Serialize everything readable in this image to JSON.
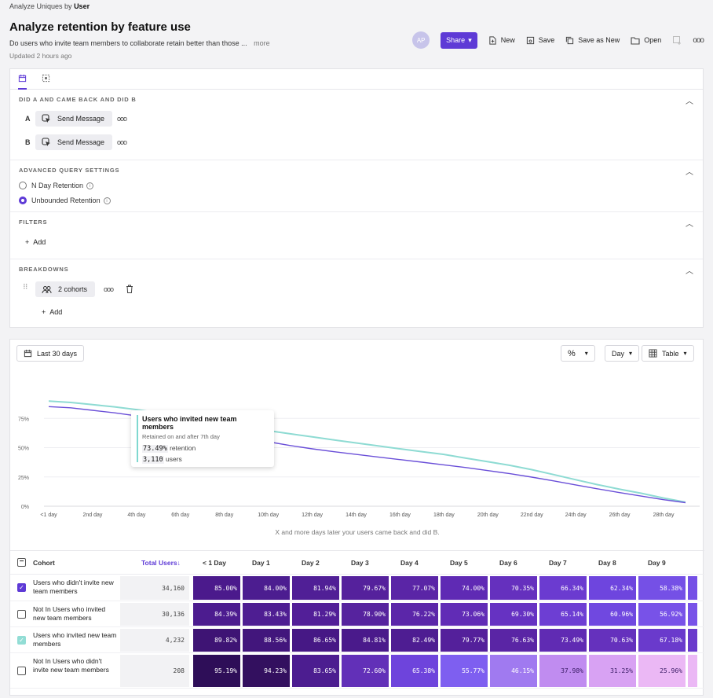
{
  "header": {
    "analyze_prefix": "Analyze Uniques by",
    "analyze_by": "User",
    "title": "Analyze retention by feature use",
    "description": "Do users who invite team members to collaborate retain better than those ...",
    "more": "more",
    "updated": "Updated 2 hours ago"
  },
  "toolbar": {
    "avatar": "AP",
    "share": "Share",
    "new": "New",
    "save": "Save",
    "save_as_new": "Save as New",
    "open": "Open"
  },
  "query": {
    "did_title": "DID A AND CAME BACK AND DID B",
    "step_a_letter": "A",
    "step_a_event": "Send Message",
    "step_b_letter": "B",
    "step_b_event": "Send Message",
    "adv_title": "ADVANCED QUERY SETTINGS",
    "n_day": "N Day Retention",
    "unbounded": "Unbounded Retention",
    "filters_title": "FILTERS",
    "filters_add": "Add",
    "breakdowns_title": "BREAKDOWNS",
    "cohorts": "2 cohorts",
    "breakdowns_add": "Add"
  },
  "controls": {
    "date_range": "Last 30 days",
    "unit": "Day",
    "view": "Table"
  },
  "chart_data": {
    "type": "line",
    "x": [
      "<1 day",
      "1st day",
      "2nd day",
      "3rd day",
      "4th day",
      "5th day",
      "6th day",
      "7th day",
      "8th day",
      "9th day",
      "10th day",
      "11th day",
      "12th day",
      "13th day",
      "14th day",
      "15th day",
      "16th day",
      "17th day",
      "18th day",
      "19th day",
      "20th day",
      "21st day",
      "22nd day",
      "23rd day",
      "24th day",
      "25th day",
      "26th day",
      "27th day",
      "28th day",
      "29th day"
    ],
    "x_tick_labels": [
      "<1 day",
      "2nd day",
      "4th day",
      "6th day",
      "8th day",
      "10th day",
      "12th day",
      "14th day",
      "16th day",
      "18th day",
      "20th day",
      "22nd day",
      "24th day",
      "26th day",
      "28th day"
    ],
    "y_ticks": [
      "0%",
      "25%",
      "50%",
      "75%"
    ],
    "ylim": [
      0,
      100
    ],
    "series": [
      {
        "name": "Users who invited new team members",
        "color": "#8edbd3",
        "values": [
          89.8,
          88.6,
          86.7,
          84.8,
          82.5,
          79.8,
          76.6,
          73.5,
          70.6,
          67.2,
          64.5,
          61.8,
          59.2,
          56.6,
          54.0,
          51.5,
          49.0,
          46.6,
          44.2,
          41.0,
          38.0,
          34.9,
          31.2,
          27.0,
          22.6,
          18.4,
          14.5,
          11.0,
          7.0,
          3.5
        ]
      },
      {
        "name": "Users who didn't invite new team members",
        "color": "#6a4fd8",
        "values": [
          85.0,
          84.0,
          81.9,
          79.7,
          77.1,
          74.0,
          70.4,
          66.3,
          62.3,
          58.4,
          55.0,
          51.8,
          49.0,
          46.5,
          44.2,
          42.0,
          39.8,
          37.6,
          35.3,
          33.0,
          30.4,
          27.8,
          24.8,
          21.6,
          18.2,
          14.8,
          11.6,
          8.6,
          5.6,
          3.0
        ]
      }
    ],
    "tooltip": {
      "title": "Users who invited new team members",
      "subtitle": "Retained on and after 7th day",
      "retention_value": "73.49%",
      "retention_label": "retention",
      "users_value": "3,110",
      "users_label": "users"
    },
    "caption": "X and more days later your users came back and did B."
  },
  "table": {
    "col_cohort": "Cohort",
    "col_total": "Total Users↓",
    "day_headers": [
      "< 1 Day",
      "Day 1",
      "Day 2",
      "Day 3",
      "Day 4",
      "Day 5",
      "Day 6",
      "Day 7",
      "Day 8",
      "Day 9"
    ],
    "rows": [
      {
        "checked": true,
        "name": "Users who didn't invite new team members",
        "total": "34,160",
        "cells": [
          "85.00%",
          "84.00%",
          "81.94%",
          "79.67%",
          "77.07%",
          "74.00%",
          "70.35%",
          "66.34%",
          "62.34%",
          "58.38%"
        ],
        "colors": [
          "#4b1a8c",
          "#4c1d90",
          "#501f96",
          "#55219c",
          "#5a25a6",
          "#5f2ab4",
          "#6530be",
          "#6b3bd0",
          "#6e45de",
          "#7550e6"
        ]
      },
      {
        "checked": false,
        "name": "Not In Users who invited new team members",
        "total": "30,136",
        "cells": [
          "84.39%",
          "83.43%",
          "81.29%",
          "78.90%",
          "76.22%",
          "73.06%",
          "69.30%",
          "65.14%",
          "60.96%",
          "56.92%"
        ],
        "colors": [
          "#4c1c8f",
          "#4e1e92",
          "#521f98",
          "#56239e",
          "#5b26a9",
          "#612cb6",
          "#6632c2",
          "#6d3ed3",
          "#7048e0",
          "#7852e8"
        ]
      },
      {
        "checked": "teal",
        "name": "Users who invited new team members",
        "total": "4,232",
        "cells": [
          "89.82%",
          "88.56%",
          "86.65%",
          "84.81%",
          "82.49%",
          "79.77%",
          "76.63%",
          "73.49%",
          "70.63%",
          "67.18%"
        ],
        "colors": [
          "#3e1474",
          "#42167c",
          "#461885",
          "#4a1a8b",
          "#4e1d92",
          "#54209b",
          "#5a25a5",
          "#602bb3",
          "#6531bd",
          "#6a3acc"
        ]
      },
      {
        "checked": false,
        "name": "Not In Users who didn't invite new team members",
        "total": "208",
        "cells": [
          "95.19%",
          "94.23%",
          "83.65%",
          "72.60%",
          "65.38%",
          "55.77%",
          "46.15%",
          "37.98%",
          "31.25%",
          "25.96%"
        ],
        "colors": [
          "#2e0e58",
          "#33105f",
          "#4c1d90",
          "#6230b8",
          "#6e44dc",
          "#7e5ff0",
          "#a07af0",
          "#c08cf0",
          "#d8a2f3",
          "#ebb8f5"
        ]
      }
    ]
  }
}
